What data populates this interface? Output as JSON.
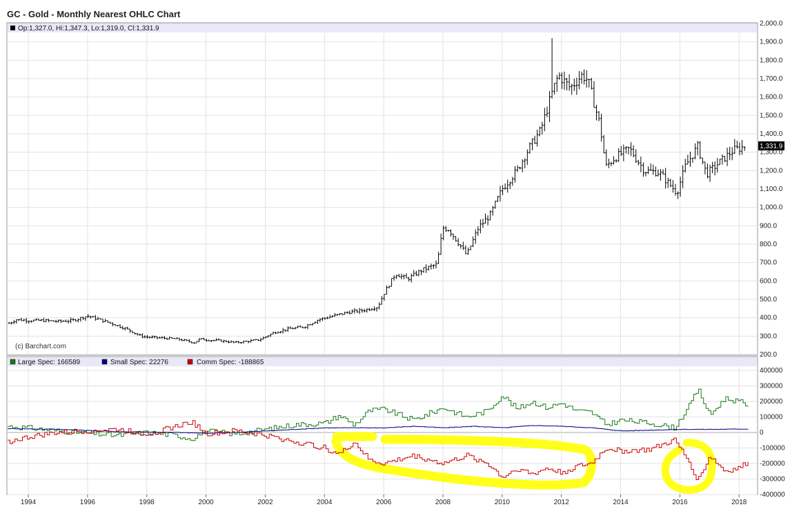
{
  "title": "GC - Gold - Monthly Nearest OHLC Chart",
  "credit": "(c) Barchart.com",
  "highlight_color": "#ffff00",
  "chart_data": [
    {
      "type": "ohlc",
      "legend": "Op:1,327.0, Hi:1,347.3, Lo:1,319.0, Cl:1,331.9",
      "last_value_label": "1,331.9",
      "ylim": [
        200,
        2000
      ],
      "xlim": [
        1993.3,
        2018.6
      ],
      "y_ticks": [
        "200.0",
        "300.0",
        "400.0",
        "500.0",
        "600.0",
        "700.0",
        "800.0",
        "900.0",
        "1,000.0",
        "1,100.0",
        "1,200.0",
        "1,300.0",
        "1,400.0",
        "1,500.0",
        "1,600.0",
        "1,700.0",
        "1,800.0",
        "1,900.0",
        "2,000.0"
      ],
      "y_tick_values": [
        200,
        300,
        400,
        500,
        600,
        700,
        800,
        900,
        1000,
        1100,
        1200,
        1300,
        1400,
        1500,
        1600,
        1700,
        1800,
        1900,
        2000
      ],
      "color": "#000000",
      "close_path_x": [
        1993.35,
        1993.6,
        1994.0,
        1994.5,
        1995.0,
        1995.5,
        1996.0,
        1996.3,
        1996.8,
        1997.3,
        1997.8,
        1998.0,
        1998.5,
        1999.0,
        1999.6,
        1999.8,
        2000.0,
        2000.5,
        2001.0,
        2001.3,
        2001.8,
        2002.3,
        2002.8,
        2003.3,
        2003.8,
        2004.3,
        2004.8,
        2005.3,
        2005.8,
        2006.0,
        2006.4,
        2006.8,
        2007.3,
        2007.8,
        2008.0,
        2008.2,
        2008.6,
        2008.8,
        2009.2,
        2009.6,
        2010.0,
        2010.5,
        2010.9,
        2011.3,
        2011.7,
        2011.9,
        2012.3,
        2012.7,
        2012.9,
        2013.3,
        2013.5,
        2013.8,
        2014.3,
        2014.8,
        2015.3,
        2015.9,
        2016.2,
        2016.6,
        2016.9,
        2017.3,
        2017.8,
        2018.2
      ],
      "close_path_y": [
        370,
        390,
        385,
        385,
        380,
        385,
        410,
        395,
        370,
        340,
        300,
        295,
        290,
        285,
        265,
        285,
        280,
        275,
        265,
        270,
        280,
        320,
        340,
        350,
        390,
        410,
        430,
        440,
        460,
        530,
        640,
        610,
        660,
        690,
        890,
        880,
        790,
        740,
        890,
        960,
        1100,
        1200,
        1320,
        1420,
        1630,
        1720,
        1650,
        1720,
        1690,
        1450,
        1220,
        1270,
        1320,
        1200,
        1190,
        1080,
        1230,
        1330,
        1180,
        1240,
        1310,
        1332
      ],
      "high_anchor_x": [
        2011.7
      ],
      "high_anchor_y": [
        1920
      ]
    },
    {
      "type": "line",
      "ylim": [
        -400000,
        400000
      ],
      "y_ticks": [
        "400000",
        "300000",
        "200000",
        "100000",
        "0",
        "-100000",
        "-200000",
        "-300000",
        "-400000"
      ],
      "y_tick_values": [
        400000,
        300000,
        200000,
        100000,
        0,
        -100000,
        -200000,
        -300000,
        -400000
      ],
      "x_ticks": [
        "1994",
        "1996",
        "1998",
        "2000",
        "2002",
        "2004",
        "2006",
        "2008",
        "2010",
        "2012",
        "2014",
        "2016",
        "2018"
      ],
      "x_tick_values": [
        1994,
        1996,
        1998,
        2000,
        2002,
        2004,
        2006,
        2008,
        2010,
        2012,
        2014,
        2016,
        2018
      ],
      "series": [
        {
          "name": "Large Spec: 166589",
          "color": "#1a7a1a",
          "x": [
            1993.3,
            1994.0,
            1995.0,
            1996.0,
            1997.0,
            1998.0,
            1999.0,
            1999.5,
            2000.0,
            2001.0,
            2002.0,
            2003.0,
            2004.0,
            2004.5,
            2005.0,
            2005.5,
            2006.0,
            2007.0,
            2008.0,
            2008.8,
            2009.5,
            2010.0,
            2010.5,
            2011.0,
            2011.5,
            2012.0,
            2012.5,
            2013.0,
            2013.5,
            2014.0,
            2015.0,
            2015.8,
            2016.3,
            2016.6,
            2017.0,
            2017.5,
            2018.0,
            2018.3
          ],
          "y": [
            40000,
            30000,
            10000,
            -5000,
            -20000,
            0,
            -20000,
            -40000,
            10000,
            -10000,
            20000,
            50000,
            60000,
            110000,
            50000,
            140000,
            150000,
            80000,
            160000,
            100000,
            140000,
            240000,
            150000,
            200000,
            160000,
            190000,
            140000,
            130000,
            50000,
            80000,
            60000,
            30000,
            170000,
            280000,
            110000,
            220000,
            200000,
            166589
          ]
        },
        {
          "name": "Small Spec: 22276",
          "color": "#00008b",
          "x": [
            1993.3,
            1995.0,
            1997.0,
            1999.0,
            2000.0,
            2001.0,
            2002.0,
            2003.0,
            2004.0,
            2005.0,
            2006.0,
            2007.0,
            2008.0,
            2009.0,
            2010.0,
            2011.0,
            2012.0,
            2013.0,
            2014.0,
            2015.0,
            2016.0,
            2017.0,
            2018.3
          ],
          "y": [
            25000,
            20000,
            5000,
            0,
            -5000,
            0,
            10000,
            20000,
            30000,
            30000,
            30000,
            40000,
            30000,
            40000,
            30000,
            45000,
            40000,
            30000,
            10000,
            15000,
            20000,
            20000,
            22276
          ]
        },
        {
          "name": "Comm Spec: -188865",
          "color": "#cc0000",
          "x": [
            1993.3,
            1994.0,
            1995.0,
            1996.0,
            1997.0,
            1998.0,
            1999.0,
            1999.5,
            2000.0,
            2001.0,
            2002.0,
            2003.0,
            2004.0,
            2004.5,
            2005.0,
            2005.5,
            2006.0,
            2007.0,
            2008.0,
            2008.8,
            2009.5,
            2010.0,
            2010.5,
            2011.0,
            2011.5,
            2012.0,
            2012.5,
            2013.0,
            2013.5,
            2014.0,
            2015.0,
            2015.8,
            2016.3,
            2016.6,
            2017.0,
            2017.5,
            2018.0,
            2018.3
          ],
          "y": [
            -60000,
            -30000,
            0,
            10000,
            20000,
            -10000,
            40000,
            70000,
            -10000,
            10000,
            -20000,
            -60000,
            -100000,
            -140000,
            -60000,
            -180000,
            -200000,
            -150000,
            -200000,
            -150000,
            -200000,
            -290000,
            -230000,
            -270000,
            -230000,
            -260000,
            -220000,
            -200000,
            -100000,
            -120000,
            -110000,
            -50000,
            -190000,
            -310000,
            -150000,
            -250000,
            -230000,
            -188865
          ]
        }
      ]
    }
  ]
}
